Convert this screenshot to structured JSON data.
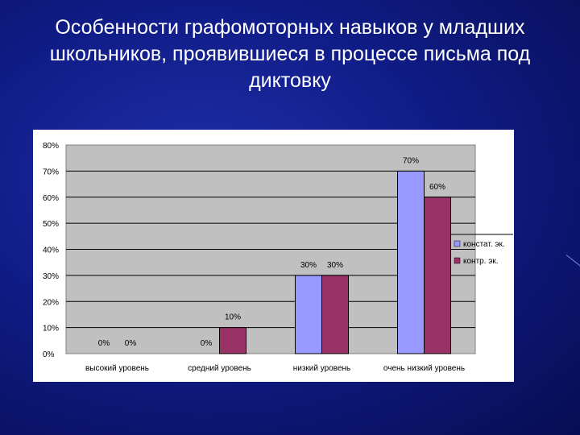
{
  "slide": {
    "title": "Особенности графомоторных навыков у младших школьников, проявившиеся в процессе письма под диктовку"
  },
  "chart_data": {
    "type": "bar",
    "categories": [
      "высокий уровень",
      "средний уровень",
      "низкий уровень",
      "очень низкий уровень"
    ],
    "series": [
      {
        "name": "констат. эк.",
        "values": [
          0,
          0,
          30,
          70
        ],
        "labels": [
          "0%",
          "0%",
          "30%",
          "70%"
        ],
        "color": "#9999ff"
      },
      {
        "name": "контр. эк.",
        "values": [
          0,
          10,
          30,
          60
        ],
        "labels": [
          "0%",
          "10%",
          "30%",
          "60%"
        ],
        "color": "#993366"
      }
    ],
    "ylim": [
      0,
      80
    ],
    "yticks": [
      "0%",
      "10%",
      "20%",
      "30%",
      "40%",
      "50%",
      "60%",
      "70%",
      "80%"
    ],
    "grid": true,
    "legend": "right",
    "plot_background": "#c0c0c0"
  }
}
